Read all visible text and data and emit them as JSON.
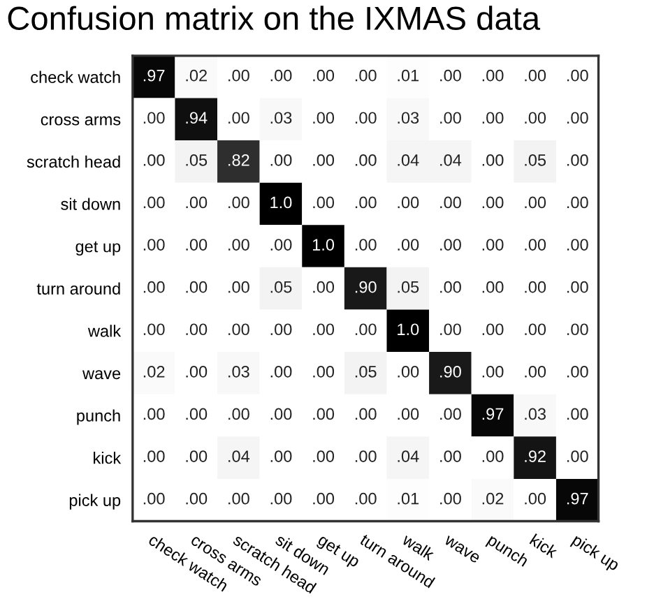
{
  "chart_data": {
    "type": "heatmap",
    "title": "Confusion matrix on the IXMAS data",
    "categories": [
      "check watch",
      "cross arms",
      "scratch head",
      "sit down",
      "get up",
      "turn around",
      "walk",
      "wave",
      "punch",
      "kick",
      "pick up"
    ],
    "y_categories": [
      "check watch",
      "cross arms",
      "scratch head",
      "sit down",
      "get up",
      "turn around",
      "walk",
      "wave",
      "punch",
      "kick",
      "pick up"
    ],
    "cells": [
      [
        0.97,
        0.02,
        0.0,
        0.0,
        0.0,
        0.0,
        0.01,
        0.0,
        0.0,
        0.0,
        0.0
      ],
      [
        0.0,
        0.94,
        0.0,
        0.03,
        0.0,
        0.0,
        0.03,
        0.0,
        0.0,
        0.0,
        0.0
      ],
      [
        0.0,
        0.05,
        0.82,
        0.0,
        0.0,
        0.0,
        0.04,
        0.04,
        0.0,
        0.05,
        0.0
      ],
      [
        0.0,
        0.0,
        0.0,
        1.0,
        0.0,
        0.0,
        0.0,
        0.0,
        0.0,
        0.0,
        0.0
      ],
      [
        0.0,
        0.0,
        0.0,
        0.0,
        1.0,
        0.0,
        0.0,
        0.0,
        0.0,
        0.0,
        0.0
      ],
      [
        0.0,
        0.0,
        0.0,
        0.05,
        0.0,
        0.9,
        0.05,
        0.0,
        0.0,
        0.0,
        0.0
      ],
      [
        0.0,
        0.0,
        0.0,
        0.0,
        0.0,
        0.0,
        1.0,
        0.0,
        0.0,
        0.0,
        0.0
      ],
      [
        0.02,
        0.0,
        0.03,
        0.0,
        0.0,
        0.05,
        0.0,
        0.9,
        0.0,
        0.0,
        0.0
      ],
      [
        0.0,
        0.0,
        0.0,
        0.0,
        0.0,
        0.0,
        0.0,
        0.0,
        0.97,
        0.03,
        0.0
      ],
      [
        0.0,
        0.0,
        0.04,
        0.0,
        0.0,
        0.0,
        0.04,
        0.0,
        0.0,
        0.92,
        0.0
      ],
      [
        0.0,
        0.0,
        0.0,
        0.0,
        0.0,
        0.0,
        0.01,
        0.0,
        0.02,
        0.0,
        0.97
      ]
    ],
    "cell_labels": [
      [
        ".97",
        ".02",
        ".00",
        ".00",
        ".00",
        ".00",
        ".01",
        ".00",
        ".00",
        ".00",
        ".00"
      ],
      [
        ".00",
        ".94",
        ".00",
        ".03",
        ".00",
        ".00",
        ".03",
        ".00",
        ".00",
        ".00",
        ".00"
      ],
      [
        ".00",
        ".05",
        ".82",
        ".00",
        ".00",
        ".00",
        ".04",
        ".04",
        ".00",
        ".05",
        ".00"
      ],
      [
        ".00",
        ".00",
        ".00",
        "1.0",
        ".00",
        ".00",
        ".00",
        ".00",
        ".00",
        ".00",
        ".00"
      ],
      [
        ".00",
        ".00",
        ".00",
        ".00",
        "1.0",
        ".00",
        ".00",
        ".00",
        ".00",
        ".00",
        ".00"
      ],
      [
        ".00",
        ".00",
        ".00",
        ".05",
        ".00",
        ".90",
        ".05",
        ".00",
        ".00",
        ".00",
        ".00"
      ],
      [
        ".00",
        ".00",
        ".00",
        ".00",
        ".00",
        ".00",
        "1.0",
        ".00",
        ".00",
        ".00",
        ".00"
      ],
      [
        ".02",
        ".00",
        ".03",
        ".00",
        ".00",
        ".05",
        ".00",
        ".90",
        ".00",
        ".00",
        ".00"
      ],
      [
        ".00",
        ".00",
        ".00",
        ".00",
        ".00",
        ".00",
        ".00",
        ".00",
        ".97",
        ".03",
        ".00"
      ],
      [
        ".00",
        ".00",
        ".04",
        ".00",
        ".00",
        ".00",
        ".04",
        ".00",
        ".00",
        ".92",
        ".00"
      ],
      [
        ".00",
        ".00",
        ".00",
        ".00",
        ".00",
        ".00",
        ".01",
        ".00",
        ".02",
        ".00",
        ".97"
      ]
    ]
  }
}
